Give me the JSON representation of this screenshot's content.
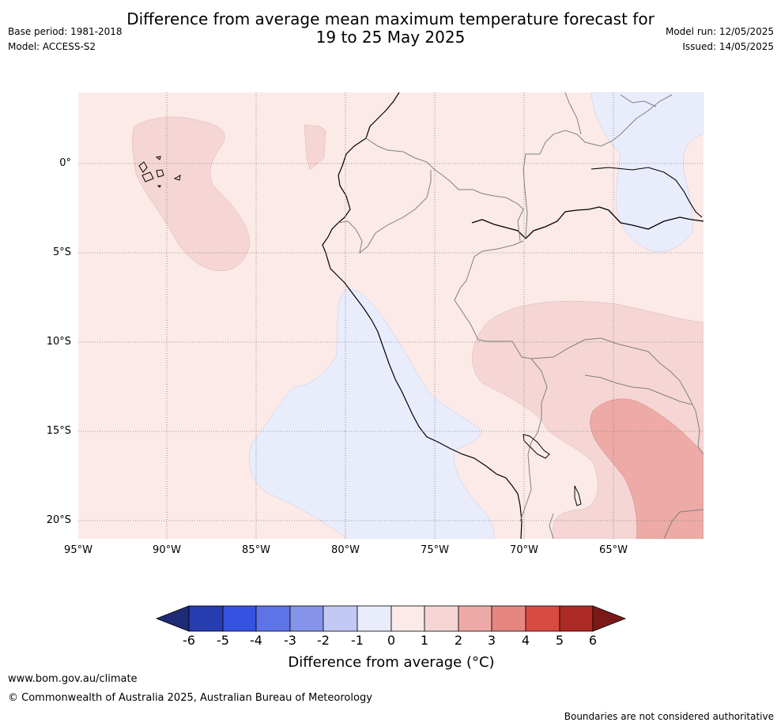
{
  "header": {
    "title_line1": "Difference from average mean maximum temperature forecast for",
    "title_line2": "19 to 25 May 2025",
    "base_period": "Base period: 1981-2018",
    "model": "Model: ACCESS-S2",
    "model_run": "Model run: 12/05/2025",
    "issued": "Issued: 14/05/2025"
  },
  "map": {
    "extent": {
      "lon_min": -95,
      "lon_max": -60,
      "lat_min": -21,
      "lat_max": 4
    },
    "latitude_labels": [
      "0°",
      "5°S",
      "10°S",
      "15°S",
      "20°S"
    ],
    "longitude_labels": [
      "95°W",
      "90°W",
      "85°W",
      "80°W",
      "75°W",
      "70°W",
      "65°W"
    ],
    "gridlines": "dotted",
    "background_anomaly_band": "0 to 1",
    "colors": {
      "band_0_1": "#fbeae8",
      "band_1_2": "#f5d6d4",
      "band_2_3": "#edaaa6",
      "band_m1_0": "#e9ecfb",
      "coastline": "#000000",
      "border": "#808080"
    }
  },
  "colorbar": {
    "ticks": [
      "-6",
      "-5",
      "-4",
      "-3",
      "-2",
      "-1",
      "0",
      "1",
      "2",
      "3",
      "4",
      "5",
      "6"
    ],
    "colors": [
      "#1f2b77",
      "#263cb0",
      "#3553e2",
      "#5d73e6",
      "#8594e9",
      "#c2c9f5",
      "#e9ecfb",
      "#fbeae8",
      "#f5d6d4",
      "#edaaa6",
      "#e58680",
      "#d94a40",
      "#ad2a24",
      "#7a1a18"
    ],
    "label": "Difference from average (°C)"
  },
  "footer": {
    "url": "www.bom.gov.au/climate",
    "copyright": "© Commonwealth of Australia 2025, Australian Bureau of Meteorology",
    "disclaimer": "Boundaries are not considered authoritative"
  }
}
